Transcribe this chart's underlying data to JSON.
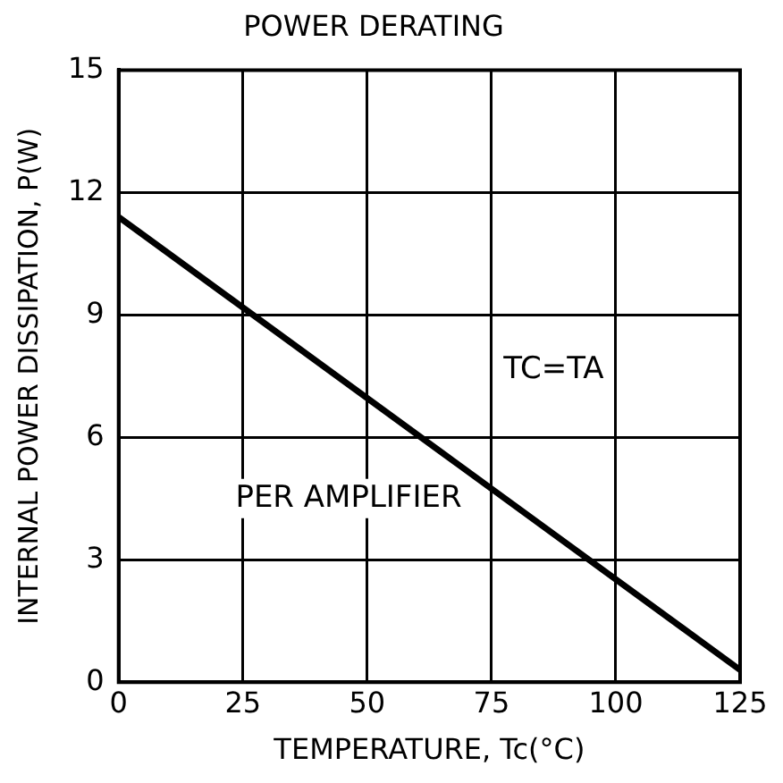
{
  "chart_data": {
    "type": "line",
    "title": "POWER DERATING",
    "xlabel": "TEMPERATURE, Tc(°C)",
    "ylabel": "INTERNAL POWER DISSIPATION, P(W)",
    "x": [
      0,
      125
    ],
    "series": [
      {
        "color": "#000000",
        "values": [
          11.4,
          0.3
        ]
      }
    ],
    "xlim": [
      0,
      125
    ],
    "xticks": [
      0,
      25,
      50,
      75,
      100,
      125
    ],
    "ylim": [
      0,
      15
    ],
    "yticks": [
      0,
      3,
      6,
      9,
      12,
      15
    ],
    "grid": true,
    "legend": false,
    "marker": "none",
    "line_style": "solid",
    "annotations": [
      "TC=TA",
      "PER AMPLIFIER"
    ]
  }
}
